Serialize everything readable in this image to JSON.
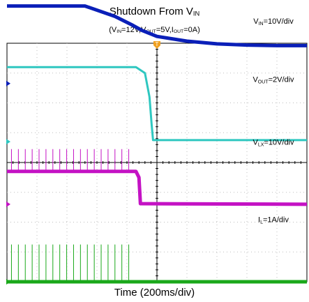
{
  "chart_data": {
    "type": "line",
    "title": {
      "main": "Shutdown From V",
      "sub": "IN"
    },
    "subtitle": {
      "parts": [
        {
          "t": "(V"
        },
        {
          "t": "IN",
          "sub": true
        },
        {
          "t": "=12V,V"
        },
        {
          "t": "OUT",
          "sub": true
        },
        {
          "t": "=5V,I"
        },
        {
          "t": "OUT",
          "sub": true
        },
        {
          "t": "=0A)"
        }
      ]
    },
    "xlabel": "Time (200ms/div)",
    "grid": {
      "x_divisions": 10,
      "y_divisions": 8,
      "style": "dotted"
    },
    "trigger_marker": "T",
    "x": [
      0,
      1.4,
      2.6,
      3.6,
      4.2,
      4.5,
      5,
      6,
      7,
      8,
      9,
      10
    ],
    "series": [
      {
        "name": "VIN",
        "color": "#0a1fb8",
        "ground_level_div": 6.65,
        "scale": {
          "main": "V",
          "sub": "IN",
          "suffix": "=10V/div"
        },
        "values": [
          2.6,
          2.6,
          2.6,
          2.25,
          1.95,
          1.78,
          1.58,
          1.42,
          1.33,
          1.29,
          1.27,
          1.27
        ]
      },
      {
        "name": "VOUT",
        "color": "#2ec7c0",
        "ground_level_div": 4.7,
        "scale": {
          "main": "V",
          "sub": "OUT",
          "suffix": "=2V/div"
        },
        "points": [
          [
            0,
            2.5
          ],
          [
            4.3,
            2.5
          ],
          [
            4.6,
            2.3
          ],
          [
            4.75,
            1.5
          ],
          [
            4.82,
            0.6
          ],
          [
            4.87,
            0.05
          ],
          [
            10,
            0.05
          ]
        ]
      },
      {
        "name": "VLX",
        "color": "#c412c4",
        "ground_level_div": 2.6,
        "scale": {
          "main": "V",
          "sub": "LX",
          "suffix": "=10V/div"
        },
        "points": [
          [
            0,
            1.1
          ],
          [
            4.3,
            1.1
          ],
          [
            4.4,
            0.9
          ],
          [
            4.45,
            0.02
          ],
          [
            10,
            0.0
          ]
        ],
        "pulses": {
          "x_start": 0.15,
          "x_end": 4.1,
          "period": 0.23,
          "height_div": 0.75
        }
      },
      {
        "name": "IL",
        "color": "#1aa81a",
        "ground_level_div": 0.0,
        "scale": {
          "main": "I",
          "sub": "L",
          "suffix": "=1A/div"
        },
        "points": [
          [
            0,
            0.0
          ],
          [
            10,
            0.0
          ]
        ],
        "pulses": {
          "x_start": 0.15,
          "x_end": 4.1,
          "period": 0.23,
          "height_div": 1.25
        }
      }
    ]
  }
}
